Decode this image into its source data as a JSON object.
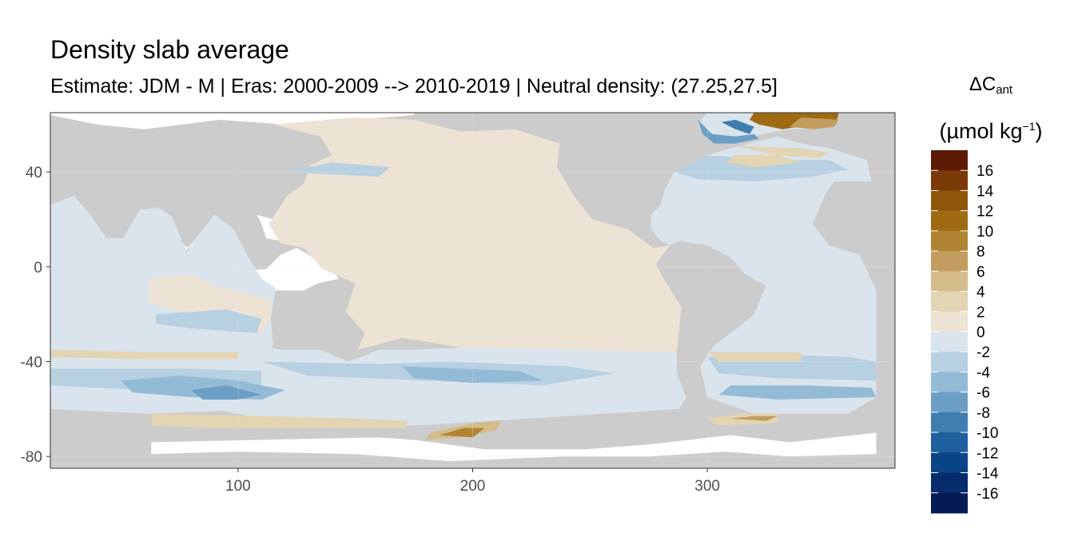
{
  "chart_data": {
    "type": "heatmap",
    "title": "Density slab average",
    "subtitle": "Estimate: JDM - M | Eras: 2000-2009 --> 2010-2019 | Neutral density: (27.25,27.5]",
    "xlabel": "",
    "ylabel": "",
    "x_ticks": [
      "100",
      "200",
      "300"
    ],
    "y_ticks": [
      "40",
      "0",
      "-40",
      "-80"
    ],
    "xlim": [
      20,
      380
    ],
    "ylim": [
      -85,
      65
    ],
    "grid": true,
    "legend": {
      "position": "right",
      "title_symbol": "ΔC",
      "title_subscript": "ant",
      "unit_prefix": "(µmol kg",
      "unit_superscript": "−1",
      "unit_suffix": ")",
      "labels": [
        "16",
        "14",
        "12",
        "10",
        "8",
        "6",
        "4",
        "2",
        "0",
        "-2",
        "-4",
        "-6",
        "-8",
        "-10",
        "-12",
        "-14",
        "-16"
      ],
      "colors": [
        "#5c1a05",
        "#7a3906",
        "#8e5609",
        "#9e6b13",
        "#b08433",
        "#c29d5f",
        "#d4bb8a",
        "#e3d4b2",
        "#ede3d4",
        "#dae4ec",
        "#b7d0e2",
        "#93bbd6",
        "#6b9fc5",
        "#3f7fb0",
        "#1d609d",
        "#0a4486",
        "#062c6b",
        "#041a55"
      ]
    },
    "land_color": "#cccccc",
    "no_data_color": "#ffffff"
  }
}
